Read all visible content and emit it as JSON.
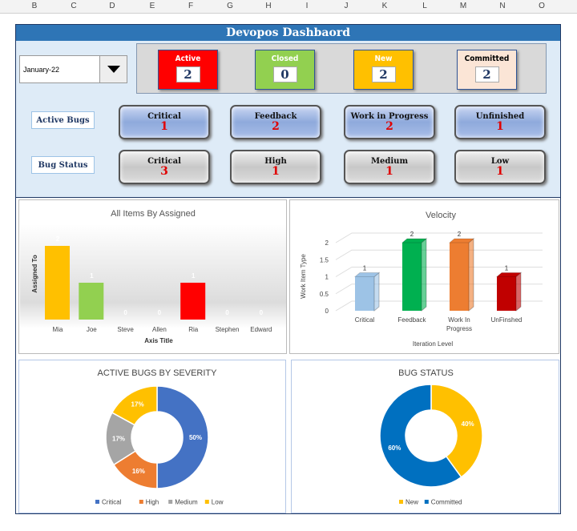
{
  "columns": [
    "B",
    "C",
    "D",
    "E",
    "F",
    "G",
    "H",
    "I",
    "J",
    "K",
    "L",
    "M",
    "N",
    "O"
  ],
  "title": "Devopos Dashbaord",
  "month_select": {
    "value": "January-22"
  },
  "status_cards": [
    {
      "label": "Active",
      "value": "2",
      "color": "#ff0000",
      "text": "#ffffff"
    },
    {
      "label": "Closed",
      "value": "0",
      "color": "#92d050",
      "text": "#ffffff"
    },
    {
      "label": "New",
      "value": "2",
      "color": "#ffc000",
      "text": "#ffffff"
    },
    {
      "label": "Committed",
      "value": "2",
      "color": "#fbe5d6",
      "text": "#000000"
    }
  ],
  "active_bugs": {
    "label": "Active Bugs",
    "items": [
      {
        "label": "Critical",
        "value": "1"
      },
      {
        "label": "Feedback",
        "value": "2"
      },
      {
        "label": "Work in Progress",
        "value": "2"
      },
      {
        "label": "Unfinished",
        "value": "1"
      }
    ]
  },
  "bug_status": {
    "label": "Bug Status",
    "items": [
      {
        "label": "Critical",
        "value": "3"
      },
      {
        "label": "High",
        "value": "1"
      },
      {
        "label": "Medium",
        "value": "1"
      },
      {
        "label": "Low",
        "value": "1"
      }
    ]
  },
  "chart_data": [
    {
      "type": "bar",
      "title": "All Items By Assigned",
      "xlabel": "Axis Title",
      "ylabel": "Assigned To",
      "categories": [
        "Mia",
        "Joe",
        "Steve",
        "Allen",
        "Ria",
        "Stephen",
        "Edward"
      ],
      "values": [
        2,
        1,
        0,
        0,
        1,
        0,
        0
      ],
      "colors": [
        "#ffc000",
        "#92d050",
        "#a5a5a5",
        "#a5a5a5",
        "#ff0000",
        "#a5a5a5",
        "#a5a5a5"
      ],
      "ylim": [
        0,
        2
      ]
    },
    {
      "type": "bar",
      "title": "Velocity",
      "xlabel": "Iteration Level",
      "ylabel": "Work Item Type",
      "categories": [
        "Critical",
        "Feedback",
        "Work In Progress",
        "UnFinshed"
      ],
      "values": [
        1,
        2,
        2,
        1
      ],
      "colors": [
        "#9dc3e6",
        "#00b050",
        "#ed7d31",
        "#c00000"
      ],
      "yticks": [
        "0",
        "0.5",
        "1",
        "1.5",
        "2"
      ],
      "ylim": [
        0,
        2
      ],
      "grid": true
    },
    {
      "type": "pie",
      "title": "ACTIVE BUGS BY SEVERITY",
      "categories": [
        "Critical",
        "High",
        "Medium",
        "Low"
      ],
      "values": [
        50,
        16,
        17,
        17
      ],
      "labels": [
        "50%",
        "16%",
        "17%",
        "17%"
      ],
      "colors": [
        "#4472c4",
        "#ed7d31",
        "#a5a5a5",
        "#ffc000"
      ],
      "legend": "bottom",
      "donut": true
    },
    {
      "type": "pie",
      "title": "BUG STATUS",
      "categories": [
        "New",
        "Committed"
      ],
      "values": [
        40,
        60
      ],
      "labels": [
        "40%",
        "60%"
      ],
      "colors": [
        "#ffc000",
        "#0070c0"
      ],
      "legend": "bottom",
      "donut": true
    }
  ]
}
